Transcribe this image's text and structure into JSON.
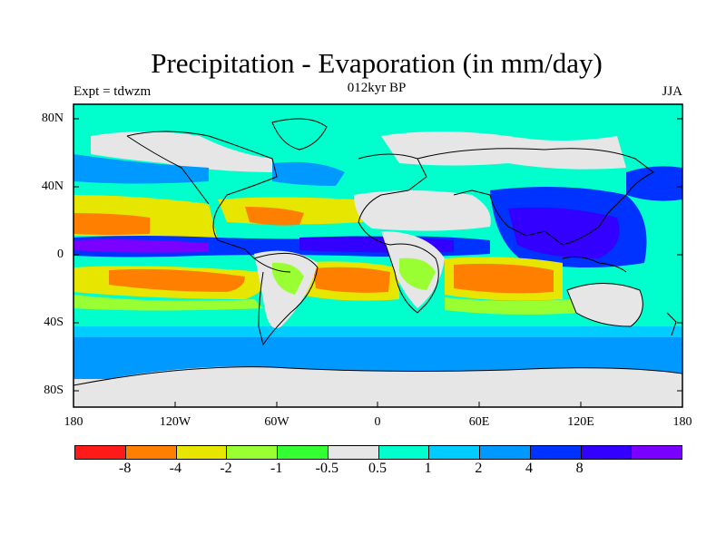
{
  "header": {
    "title": "Precipitation - Evaporation (in mm/day)",
    "subtitle": "012kyr BP",
    "left_label": "Expt = tdwzm",
    "right_label": "JJA"
  },
  "axes": {
    "lat_labels": [
      "80N",
      "40N",
      "0",
      "40S",
      "80S"
    ],
    "lon_labels": [
      "180",
      "120W",
      "60W",
      "0",
      "60E",
      "120E",
      "180"
    ]
  },
  "colorbar": {
    "colors": [
      "#ff1a1a",
      "#ff8000",
      "#e6e600",
      "#99ff33",
      "#33ff33",
      "#e6e6e6",
      "#00ffcc",
      "#00ccff",
      "#0099ff",
      "#0033ff",
      "#3300ff",
      "#7a00ff"
    ],
    "labels": [
      "-8",
      "-4",
      "-2",
      "-1",
      "-0.5",
      "0.5",
      "1",
      "2",
      "4",
      "8"
    ]
  },
  "legend_colors": {
    "orange": "#ff8c00",
    "yellow": "#e6e600",
    "lightgreen": "#99ff33",
    "green": "#33ff33",
    "grey": "#e6e6e6",
    "cyan": "#00ffcc",
    "lightblue": "#00ccff",
    "blue": "#0099ff",
    "darkblue": "#0033ff",
    "indigo": "#3300ff",
    "violet": "#7a00ff"
  }
}
